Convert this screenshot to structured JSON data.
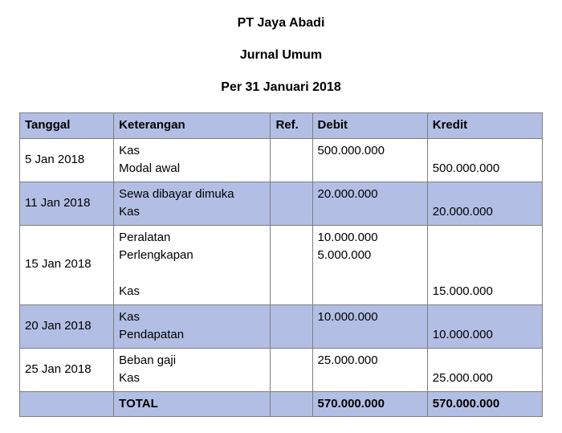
{
  "heading": {
    "company": "PT Jaya Abadi",
    "title": "Jurnal Umum",
    "period": "Per 31 Januari 2018"
  },
  "table": {
    "header_bg": "#b3bee4",
    "alt_row_bg": "#b3bee4",
    "border_color": "#7e7e7e",
    "col_widths": [
      "18%",
      "30%",
      "8%",
      "22%",
      "22%"
    ],
    "columns": [
      "Tanggal",
      "Keterangan",
      "Ref.",
      "Debit",
      "Kredit"
    ],
    "rows": [
      {
        "tanggal": "5 Jan 2018",
        "keterangan": [
          "Kas",
          "Modal awal"
        ],
        "ref": "",
        "debit": [
          "500.000.000",
          ""
        ],
        "kredit": [
          "",
          "500.000.000"
        ]
      },
      {
        "tanggal": "11 Jan 2018",
        "keterangan": [
          "Sewa dibayar dimuka",
          "Kas"
        ],
        "ref": "",
        "debit": [
          "20.000.000",
          ""
        ],
        "kredit": [
          "",
          "20.000.000"
        ]
      },
      {
        "tanggal": "15 Jan 2018",
        "keterangan": [
          "Peralatan",
          "Perlengkapan",
          "",
          "Kas"
        ],
        "ref": "",
        "debit": [
          "10.000.000",
          "5.000.000",
          "",
          ""
        ],
        "kredit": [
          "",
          "",
          "",
          "15.000.000"
        ]
      },
      {
        "tanggal": "20 Jan 2018",
        "keterangan": [
          "Kas",
          "Pendapatan"
        ],
        "ref": "",
        "debit": [
          "10.000.000",
          ""
        ],
        "kredit": [
          "",
          "10.000.000"
        ]
      },
      {
        "tanggal": "25 Jan 2018",
        "keterangan": [
          "Beban gaji",
          "Kas"
        ],
        "ref": "",
        "debit": [
          "25.000.000",
          ""
        ],
        "kredit": [
          "",
          "25.000.000"
        ]
      }
    ],
    "total": {
      "label": "TOTAL",
      "debit": "570.000.000",
      "kredit": "570.000.000"
    }
  }
}
